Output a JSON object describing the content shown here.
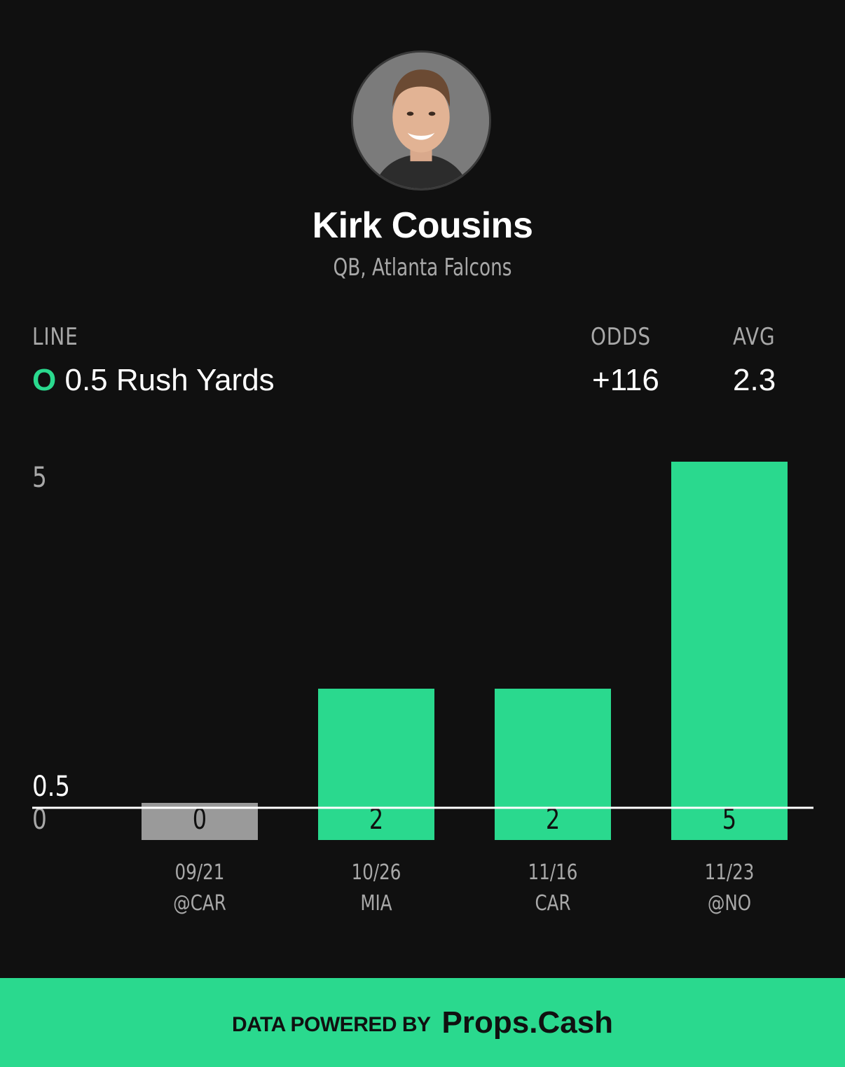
{
  "player": {
    "name": "Kirk Cousins",
    "subtitle": "QB, Atlanta Falcons"
  },
  "stats": {
    "line_label": "LINE",
    "odds_label": "ODDS",
    "avg_label": "AVG",
    "over_under": "O",
    "line_value": "0.5 Rush Yards",
    "odds_value": "+116",
    "avg_value": "2.3"
  },
  "colors": {
    "hit": "#2ad98e",
    "miss": "#9a9a9a",
    "background": "#101010"
  },
  "chart_data": {
    "type": "bar",
    "categories": [
      {
        "date": "09/21",
        "opponent": "@CAR"
      },
      {
        "date": "10/26",
        "opponent": "MIA"
      },
      {
        "date": "11/16",
        "opponent": "CAR"
      },
      {
        "date": "11/23",
        "opponent": "@NO"
      }
    ],
    "values": [
      0,
      2,
      2,
      5
    ],
    "value_labels": [
      "0",
      "2",
      "2",
      "5"
    ],
    "line": 0.5,
    "line_label": "0.5",
    "y_ticks": [
      {
        "value": 0,
        "label": "0"
      },
      {
        "value": 5,
        "label": "5"
      }
    ],
    "ylim": [
      0,
      5.3
    ],
    "grid": false,
    "legend": "none"
  },
  "footer": {
    "prefix": "DATA POWERED BY",
    "brand": "Props.Cash"
  }
}
